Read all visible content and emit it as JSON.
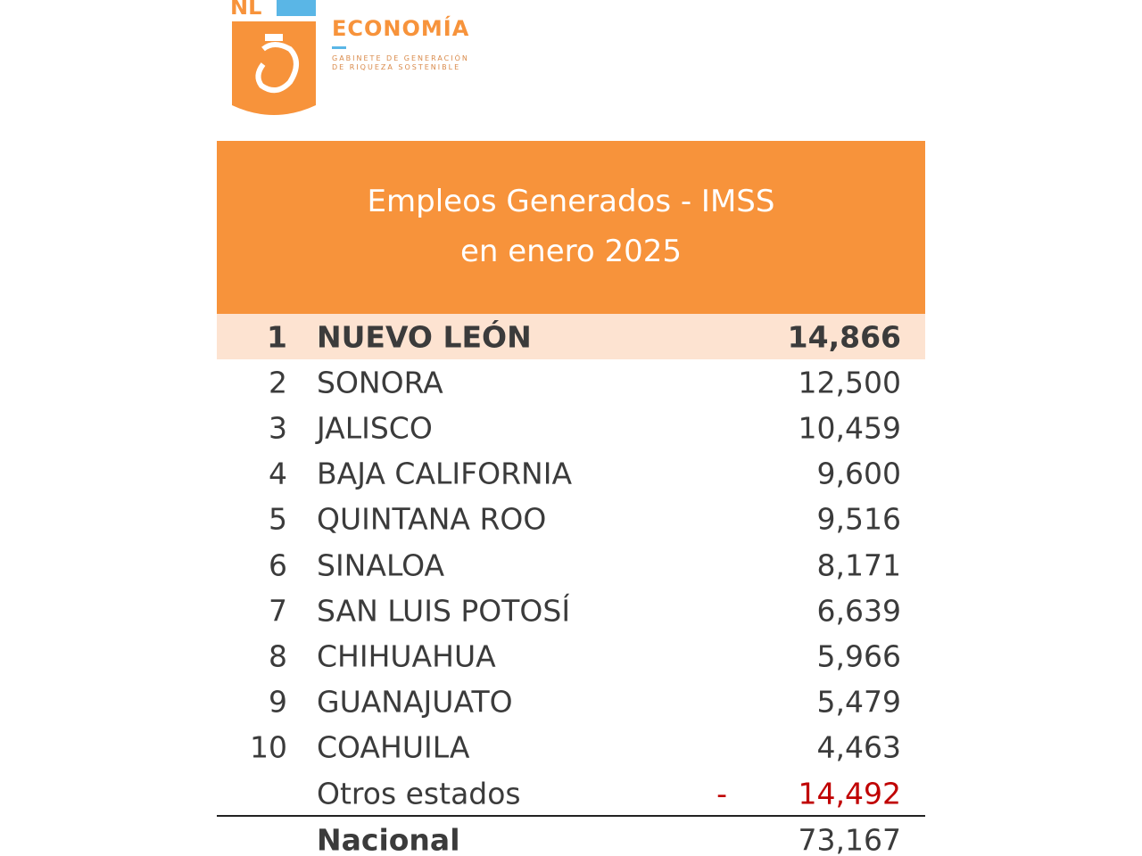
{
  "logo": {
    "badge": "NL",
    "name": "ECONOMÍA",
    "tagline": [
      "GABINETE DE GENERACIÓN",
      "DE RIQUEZA SOSTENIBLE"
    ]
  },
  "header": {
    "title": [
      "Empleos Generados - IMSS",
      "en enero 2025"
    ]
  },
  "table": {
    "rows": [
      [
        "1",
        "NUEVO LEÓN",
        "14,866"
      ],
      [
        "2",
        "SONORA",
        "12,500"
      ],
      [
        "3",
        "JALISCO",
        "10,459"
      ],
      [
        "4",
        "BAJA CALIFORNIA",
        "9,600"
      ],
      [
        "5",
        "QUINTANA ROO",
        "9,516"
      ],
      [
        "6",
        "SINALOA",
        "8,171"
      ],
      [
        "7",
        "SAN LUIS POTOSÍ",
        "6,639"
      ],
      [
        "8",
        "CHIHUAHUA",
        "5,966"
      ],
      [
        "9",
        "GUANAJUATO",
        "5,479"
      ],
      [
        "10",
        "COAHUILA",
        "4,463"
      ]
    ],
    "others": {
      "label": "Otros estados",
      "sign": "-",
      "value": "14,492"
    },
    "total": {
      "label": "Nacional",
      "value": "73,167"
    }
  }
}
